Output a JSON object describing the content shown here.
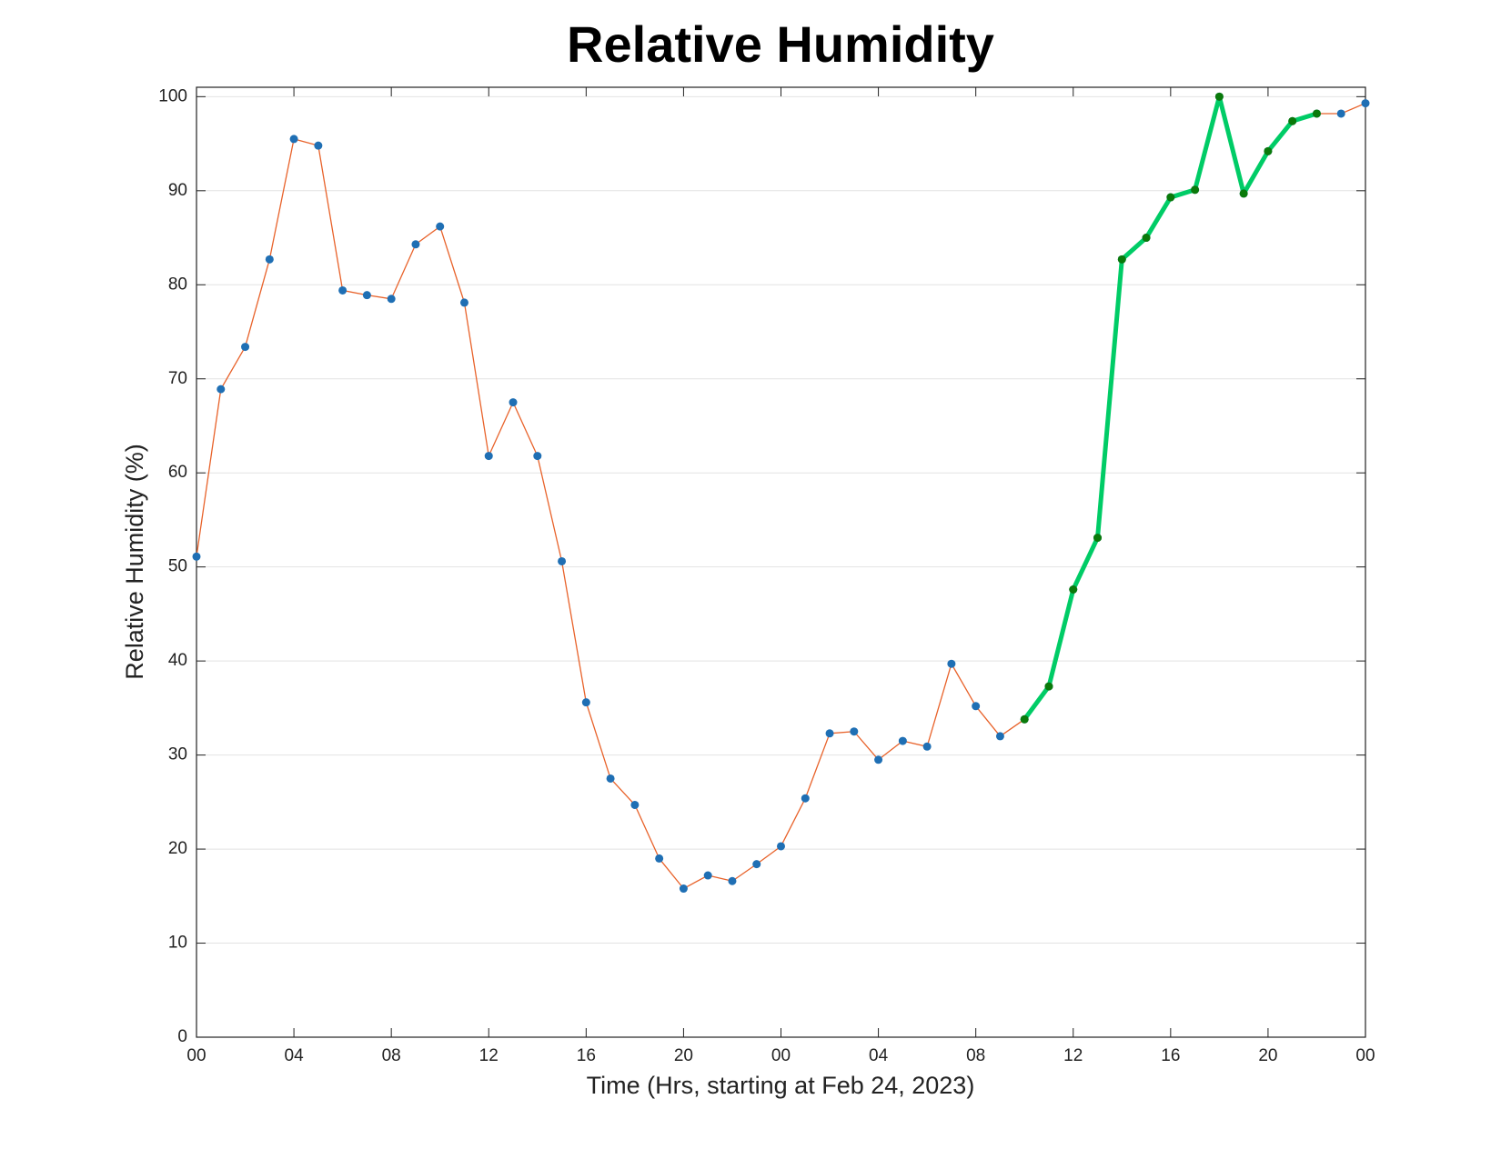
{
  "chart_data": {
    "type": "line",
    "title": "Relative Humidity",
    "xlabel": "Time (Hrs, starting at Feb 24, 2023)",
    "ylabel": "Relative Humidity (%)",
    "xlim": [
      0,
      48
    ],
    "xticks": [
      {
        "value": 0,
        "label": "00"
      },
      {
        "value": 4,
        "label": "04"
      },
      {
        "value": 8,
        "label": "08"
      },
      12,
      16,
      20,
      {
        "value": 24,
        "label": "00"
      },
      {
        "value": 28,
        "label": "04"
      },
      {
        "value": 32,
        "label": "08"
      },
      {
        "value": 36,
        "label": "12"
      },
      {
        "value": 40,
        "label": "16"
      },
      {
        "value": 44,
        "label": "20"
      },
      {
        "value": 48,
        "label": "00"
      }
    ],
    "ylim": [
      0,
      101
    ],
    "yticks": [
      0,
      10,
      20,
      30,
      40,
      50,
      60,
      70,
      80,
      90,
      100
    ],
    "grid": "y",
    "series": [
      {
        "color": "#e8622a",
        "marker_color": "#1f6fb4",
        "line_width": 1.3,
        "x": [
          0,
          1,
          2,
          3,
          4,
          5,
          6,
          7,
          8,
          9,
          10,
          11,
          12,
          13,
          14,
          15,
          16,
          17,
          18,
          19,
          20,
          21,
          22,
          23,
          24,
          25,
          26,
          27,
          28,
          29,
          30,
          31,
          32,
          33,
          34,
          35,
          36,
          37,
          38,
          39,
          40,
          41,
          42,
          43,
          44,
          45,
          46,
          47,
          48
        ],
        "values": [
          51.1,
          68.9,
          73.4,
          82.7,
          95.5,
          94.8,
          79.4,
          78.9,
          78.5,
          84.3,
          86.2,
          78.1,
          61.8,
          67.5,
          61.8,
          50.6,
          35.6,
          27.5,
          24.7,
          19.0,
          15.8,
          17.2,
          16.6,
          18.4,
          20.3,
          25.4,
          32.3,
          32.5,
          29.5,
          31.5,
          30.9,
          39.7,
          35.2,
          32.0,
          33.8,
          37.3,
          47.6,
          53.1,
          82.7,
          85.0,
          89.3,
          90.1,
          100.0,
          89.7,
          94.2,
          97.4,
          98.2,
          98.2,
          99.3
        ]
      },
      {
        "color": "#00cc66",
        "marker_color": "#0a7a0a",
        "line_width": 5,
        "x": [
          34,
          35,
          36,
          37,
          38,
          39,
          40,
          41,
          42,
          43,
          44,
          45,
          46
        ],
        "values": [
          33.8,
          37.3,
          47.6,
          53.1,
          82.7,
          85.0,
          89.3,
          90.1,
          100.0,
          89.7,
          94.2,
          97.4,
          98.2
        ]
      }
    ]
  }
}
